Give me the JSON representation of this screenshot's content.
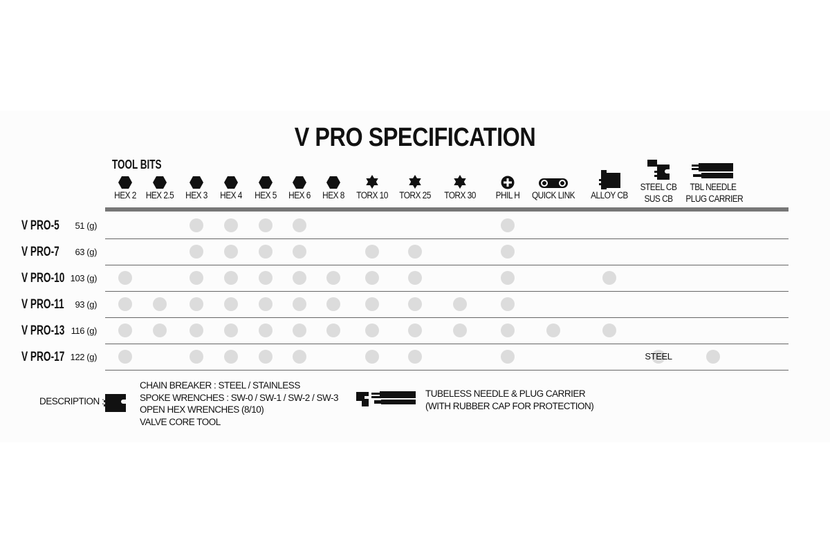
{
  "title": "V PRO SPECIFICATION",
  "tool_bits_label": "TOOL BITS",
  "columns": [
    {
      "label": [
        "HEX 2"
      ],
      "icon": "hex-icon"
    },
    {
      "label": [
        "HEX 2.5"
      ],
      "icon": "hex-icon"
    },
    {
      "label": [
        "HEX 3"
      ],
      "icon": "hex-icon"
    },
    {
      "label": [
        "HEX 4"
      ],
      "icon": "hex-icon"
    },
    {
      "label": [
        "HEX 5"
      ],
      "icon": "hex-icon"
    },
    {
      "label": [
        "HEX 6"
      ],
      "icon": "hex-icon"
    },
    {
      "label": [
        "HEX 8"
      ],
      "icon": "hex-icon"
    },
    {
      "label": [
        "TORX 10"
      ],
      "icon": "torx-icon"
    },
    {
      "label": [
        "TORX 25"
      ],
      "icon": "torx-icon"
    },
    {
      "label": [
        "TORX 30"
      ],
      "icon": "torx-icon"
    },
    {
      "label": [
        "PHIL H"
      ],
      "icon": "phillips-icon"
    },
    {
      "label": [
        "QUICK LINK"
      ],
      "icon": "quick-link-icon"
    },
    {
      "label": [
        "ALLOY CB"
      ],
      "icon": "alloy-chain-breaker-icon"
    },
    {
      "label": [
        "STEEL CB",
        "SUS CB"
      ],
      "icon": "steel-chain-breaker-icon"
    },
    {
      "label": [
        "TBL NEEDLE",
        "PLUG CARRIER"
      ],
      "icon": "tubeless-needle-icon"
    }
  ],
  "rows": [
    {
      "name": "V PRO-5",
      "weight": "51 (g)",
      "cells": [
        "",
        "",
        "dot",
        "dot",
        "dot",
        "dot",
        "",
        "",
        "",
        "",
        "dot",
        "",
        "",
        "",
        ""
      ]
    },
    {
      "name": "V PRO-7",
      "weight": "63 (g)",
      "cells": [
        "",
        "",
        "dot",
        "dot",
        "dot",
        "dot",
        "",
        "dot",
        "dot",
        "",
        "dot",
        "",
        "",
        "",
        ""
      ]
    },
    {
      "name": "V PRO-10",
      "weight": "103 (g)",
      "cells": [
        "dot",
        "",
        "dot",
        "dot",
        "dot",
        "dot",
        "dot",
        "dot",
        "dot",
        "",
        "dot",
        "",
        "dot",
        "",
        ""
      ]
    },
    {
      "name": "V PRO-11",
      "weight": "93 (g)",
      "cells": [
        "dot",
        "dot",
        "dot",
        "dot",
        "dot",
        "dot",
        "dot",
        "dot",
        "dot",
        "dot",
        "dot",
        "",
        "",
        "",
        ""
      ]
    },
    {
      "name": "V PRO-13",
      "weight": "116 (g)",
      "cells": [
        "dot",
        "dot",
        "dot",
        "dot",
        "dot",
        "dot",
        "dot",
        "dot",
        "dot",
        "dot",
        "dot",
        "dot",
        "dot",
        "",
        ""
      ]
    },
    {
      "name": "V PRO-17",
      "weight": "122 (g)",
      "cells": [
        "dot",
        "",
        "dot",
        "dot",
        "dot",
        "dot",
        "",
        "dot",
        "dot",
        "",
        "dot",
        "",
        "",
        "STEEL",
        "dot"
      ]
    }
  ],
  "description": {
    "label": "DESCRIPTION :",
    "chain_breaker_lines": [
      "CHAIN BREAKER : STEEL / STAINLESS",
      "SPOKE WRENCHES : SW-0 / SW-1 / SW-2 / SW-3",
      "OPEN HEX WRENCHES (8/10)",
      "VALVE CORE TOOL"
    ],
    "tubeless_lines": [
      "TUBELESS NEEDLE & PLUG CARRIER",
      "(WITH RUBBER CAP FOR PROTECTION)"
    ]
  },
  "colors": {
    "dot": "#dcdcdc",
    "header_bar": "#777777",
    "text": "#111111"
  }
}
